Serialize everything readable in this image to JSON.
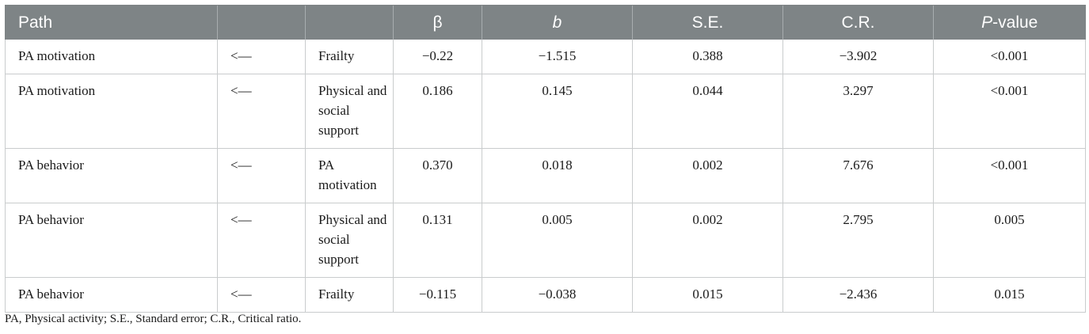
{
  "table": {
    "headers": [
      {
        "label": "Path",
        "italic": false
      },
      {
        "label": "",
        "italic": false
      },
      {
        "label": "",
        "italic": false
      },
      {
        "label": "β",
        "italic": false
      },
      {
        "label": "b",
        "italic": true
      },
      {
        "label": "S.E.",
        "italic": false
      },
      {
        "label": "C.R.",
        "italic": false
      },
      {
        "label_italic": "P",
        "label_rest": "-value"
      }
    ],
    "rows": [
      {
        "outcome": "PA motivation",
        "arrow": "<—",
        "predictor": "Frailty",
        "beta": "−0.22",
        "b": "−1.515",
        "se": "0.388",
        "cr": "−3.902",
        "p": "<0.001"
      },
      {
        "outcome": "PA motivation",
        "arrow": "<—",
        "predictor": "Physical and social support",
        "beta": "0.186",
        "b": "0.145",
        "se": "0.044",
        "cr": "3.297",
        "p": "<0.001"
      },
      {
        "outcome": "PA behavior",
        "arrow": "<—",
        "predictor": "PA motivation",
        "beta": "0.370",
        "b": "0.018",
        "se": "0.002",
        "cr": "7.676",
        "p": "<0.001"
      },
      {
        "outcome": "PA behavior",
        "arrow": "<—",
        "predictor": "Physical and social support",
        "beta": "0.131",
        "b": "0.005",
        "se": "0.002",
        "cr": "2.795",
        "p": "0.005"
      },
      {
        "outcome": "PA behavior",
        "arrow": "<—",
        "predictor": "Frailty",
        "beta": "−0.115",
        "b": "−0.038",
        "se": "0.015",
        "cr": "−2.436",
        "p": "0.015"
      }
    ]
  },
  "footnote": "PA, Physical activity; S.E., Standard error; C.R., Critical ratio.",
  "colors": {
    "header_bg": "#7e8486",
    "header_text": "#ffffff",
    "grid_line": "#c9cccd"
  }
}
